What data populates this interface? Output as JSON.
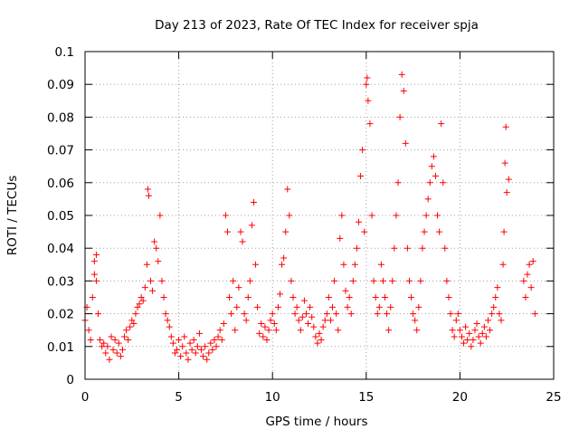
{
  "chart_data": {
    "type": "scatter",
    "title": "Day 213 of 2023, Rate Of TEC Index for receiver spja",
    "xlabel": "GPS time / hours",
    "ylabel": "ROTI / TECUs",
    "xlim": [
      0,
      25
    ],
    "ylim": [
      0,
      0.1
    ],
    "xticks": [
      0,
      5,
      10,
      15,
      20,
      25
    ],
    "xtick_labels": [
      "0",
      "5",
      "10",
      "15",
      "20",
      "25"
    ],
    "yticks": [
      0,
      0.01,
      0.02,
      0.03,
      0.04,
      0.05,
      0.06,
      0.07,
      0.08,
      0.09,
      0.1
    ],
    "ytick_labels": [
      "0",
      "0.01",
      "0.02",
      "0.03",
      "0.04",
      "0.05",
      "0.06",
      "0.07",
      "0.08",
      "0.09",
      "0.1"
    ],
    "grid": true,
    "legend": "none",
    "marker": "plus",
    "color": "#ff0000",
    "series": [
      {
        "values": [
          [
            0.0,
            0.018
          ],
          [
            0.1,
            0.022
          ],
          [
            0.2,
            0.015
          ],
          [
            0.3,
            0.012
          ],
          [
            0.4,
            0.025
          ],
          [
            0.5,
            0.032
          ],
          [
            0.5,
            0.036
          ],
          [
            0.6,
            0.038
          ],
          [
            0.6,
            0.03
          ],
          [
            0.7,
            0.02
          ],
          [
            0.8,
            0.012
          ],
          [
            0.9,
            0.01
          ],
          [
            1.0,
            0.011
          ],
          [
            1.1,
            0.008
          ],
          [
            1.2,
            0.01
          ],
          [
            1.3,
            0.006
          ],
          [
            1.4,
            0.013
          ],
          [
            1.5,
            0.009
          ],
          [
            1.6,
            0.012
          ],
          [
            1.7,
            0.008
          ],
          [
            1.8,
            0.011
          ],
          [
            1.9,
            0.007
          ],
          [
            2.0,
            0.009
          ],
          [
            2.1,
            0.013
          ],
          [
            2.2,
            0.015
          ],
          [
            2.3,
            0.012
          ],
          [
            2.4,
            0.016
          ],
          [
            2.5,
            0.018
          ],
          [
            2.6,
            0.017
          ],
          [
            2.7,
            0.02
          ],
          [
            2.8,
            0.022
          ],
          [
            2.9,
            0.023
          ],
          [
            3.0,
            0.025
          ],
          [
            3.1,
            0.024
          ],
          [
            3.2,
            0.028
          ],
          [
            3.3,
            0.035
          ],
          [
            3.35,
            0.058
          ],
          [
            3.4,
            0.056
          ],
          [
            3.5,
            0.03
          ],
          [
            3.6,
            0.027
          ],
          [
            3.7,
            0.042
          ],
          [
            3.8,
            0.04
          ],
          [
            3.9,
            0.036
          ],
          [
            4.0,
            0.05
          ],
          [
            4.1,
            0.03
          ],
          [
            4.2,
            0.025
          ],
          [
            4.3,
            0.02
          ],
          [
            4.4,
            0.018
          ],
          [
            4.5,
            0.016
          ],
          [
            4.6,
            0.013
          ],
          [
            4.7,
            0.011
          ],
          [
            4.8,
            0.008
          ],
          [
            4.9,
            0.009
          ],
          [
            5.0,
            0.012
          ],
          [
            5.1,
            0.007
          ],
          [
            5.2,
            0.01
          ],
          [
            5.3,
            0.013
          ],
          [
            5.4,
            0.008
          ],
          [
            5.5,
            0.006
          ],
          [
            5.6,
            0.011
          ],
          [
            5.7,
            0.009
          ],
          [
            5.8,
            0.012
          ],
          [
            5.9,
            0.008
          ],
          [
            6.0,
            0.01
          ],
          [
            6.1,
            0.014
          ],
          [
            6.2,
            0.009
          ],
          [
            6.3,
            0.007
          ],
          [
            6.4,
            0.01
          ],
          [
            6.5,
            0.006
          ],
          [
            6.6,
            0.008
          ],
          [
            6.7,
            0.011
          ],
          [
            6.8,
            0.009
          ],
          [
            6.9,
            0.012
          ],
          [
            7.0,
            0.01
          ],
          [
            7.1,
            0.013
          ],
          [
            7.2,
            0.015
          ],
          [
            7.3,
            0.012
          ],
          [
            7.4,
            0.017
          ],
          [
            7.5,
            0.05
          ],
          [
            7.6,
            0.045
          ],
          [
            7.7,
            0.025
          ],
          [
            7.8,
            0.02
          ],
          [
            7.9,
            0.03
          ],
          [
            8.0,
            0.015
          ],
          [
            8.1,
            0.022
          ],
          [
            8.2,
            0.028
          ],
          [
            8.3,
            0.045
          ],
          [
            8.4,
            0.042
          ],
          [
            8.5,
            0.02
          ],
          [
            8.6,
            0.018
          ],
          [
            8.7,
            0.025
          ],
          [
            8.8,
            0.03
          ],
          [
            8.9,
            0.047
          ],
          [
            9.0,
            0.054
          ],
          [
            9.1,
            0.035
          ],
          [
            9.2,
            0.022
          ],
          [
            9.3,
            0.014
          ],
          [
            9.4,
            0.017
          ],
          [
            9.5,
            0.013
          ],
          [
            9.6,
            0.016
          ],
          [
            9.7,
            0.012
          ],
          [
            9.8,
            0.015
          ],
          [
            9.9,
            0.018
          ],
          [
            10.0,
            0.02
          ],
          [
            10.1,
            0.017
          ],
          [
            10.2,
            0.015
          ],
          [
            10.3,
            0.022
          ],
          [
            10.4,
            0.026
          ],
          [
            10.5,
            0.035
          ],
          [
            10.6,
            0.037
          ],
          [
            10.7,
            0.045
          ],
          [
            10.8,
            0.058
          ],
          [
            10.9,
            0.05
          ],
          [
            11.0,
            0.03
          ],
          [
            11.1,
            0.025
          ],
          [
            11.2,
            0.02
          ],
          [
            11.3,
            0.022
          ],
          [
            11.4,
            0.018
          ],
          [
            11.5,
            0.015
          ],
          [
            11.6,
            0.019
          ],
          [
            11.7,
            0.024
          ],
          [
            11.8,
            0.02
          ],
          [
            11.9,
            0.017
          ],
          [
            12.0,
            0.022
          ],
          [
            12.1,
            0.019
          ],
          [
            12.2,
            0.016
          ],
          [
            12.3,
            0.013
          ],
          [
            12.4,
            0.011
          ],
          [
            12.5,
            0.014
          ],
          [
            12.6,
            0.012
          ],
          [
            12.7,
            0.016
          ],
          [
            12.8,
            0.018
          ],
          [
            12.9,
            0.02
          ],
          [
            13.0,
            0.025
          ],
          [
            13.1,
            0.018
          ],
          [
            13.2,
            0.022
          ],
          [
            13.3,
            0.03
          ],
          [
            13.4,
            0.02
          ],
          [
            13.5,
            0.015
          ],
          [
            13.6,
            0.043
          ],
          [
            13.7,
            0.05
          ],
          [
            13.8,
            0.035
          ],
          [
            13.9,
            0.027
          ],
          [
            14.0,
            0.022
          ],
          [
            14.1,
            0.025
          ],
          [
            14.2,
            0.02
          ],
          [
            14.3,
            0.03
          ],
          [
            14.4,
            0.035
          ],
          [
            14.5,
            0.04
          ],
          [
            14.6,
            0.048
          ],
          [
            14.7,
            0.062
          ],
          [
            14.8,
            0.07
          ],
          [
            14.9,
            0.045
          ],
          [
            15.0,
            0.09
          ],
          [
            15.05,
            0.092
          ],
          [
            15.1,
            0.085
          ],
          [
            15.2,
            0.078
          ],
          [
            15.3,
            0.05
          ],
          [
            15.4,
            0.03
          ],
          [
            15.5,
            0.025
          ],
          [
            15.6,
            0.02
          ],
          [
            15.7,
            0.022
          ],
          [
            15.8,
            0.035
          ],
          [
            15.9,
            0.03
          ],
          [
            16.0,
            0.025
          ],
          [
            16.1,
            0.02
          ],
          [
            16.2,
            0.015
          ],
          [
            16.3,
            0.022
          ],
          [
            16.4,
            0.03
          ],
          [
            16.5,
            0.04
          ],
          [
            16.6,
            0.05
          ],
          [
            16.7,
            0.06
          ],
          [
            16.8,
            0.08
          ],
          [
            16.9,
            0.093
          ],
          [
            17.0,
            0.088
          ],
          [
            17.1,
            0.072
          ],
          [
            17.2,
            0.04
          ],
          [
            17.3,
            0.03
          ],
          [
            17.4,
            0.025
          ],
          [
            17.5,
            0.02
          ],
          [
            17.6,
            0.018
          ],
          [
            17.7,
            0.015
          ],
          [
            17.8,
            0.022
          ],
          [
            17.9,
            0.03
          ],
          [
            18.0,
            0.04
          ],
          [
            18.1,
            0.045
          ],
          [
            18.2,
            0.05
          ],
          [
            18.3,
            0.055
          ],
          [
            18.4,
            0.06
          ],
          [
            18.5,
            0.065
          ],
          [
            18.6,
            0.068
          ],
          [
            18.7,
            0.062
          ],
          [
            18.8,
            0.05
          ],
          [
            18.9,
            0.045
          ],
          [
            19.0,
            0.078
          ],
          [
            19.1,
            0.06
          ],
          [
            19.2,
            0.04
          ],
          [
            19.3,
            0.03
          ],
          [
            19.4,
            0.025
          ],
          [
            19.5,
            0.02
          ],
          [
            19.6,
            0.015
          ],
          [
            19.7,
            0.013
          ],
          [
            19.8,
            0.018
          ],
          [
            19.9,
            0.02
          ],
          [
            20.0,
            0.015
          ],
          [
            20.1,
            0.013
          ],
          [
            20.2,
            0.011
          ],
          [
            20.3,
            0.016
          ],
          [
            20.4,
            0.012
          ],
          [
            20.5,
            0.014
          ],
          [
            20.6,
            0.01
          ],
          [
            20.7,
            0.012
          ],
          [
            20.8,
            0.015
          ],
          [
            20.9,
            0.017
          ],
          [
            21.0,
            0.013
          ],
          [
            21.1,
            0.011
          ],
          [
            21.2,
            0.014
          ],
          [
            21.3,
            0.016
          ],
          [
            21.4,
            0.013
          ],
          [
            21.5,
            0.018
          ],
          [
            21.6,
            0.015
          ],
          [
            21.7,
            0.02
          ],
          [
            21.8,
            0.022
          ],
          [
            21.9,
            0.025
          ],
          [
            22.0,
            0.028
          ],
          [
            22.1,
            0.02
          ],
          [
            22.2,
            0.018
          ],
          [
            22.3,
            0.035
          ],
          [
            22.35,
            0.045
          ],
          [
            22.4,
            0.066
          ],
          [
            22.45,
            0.077
          ],
          [
            22.5,
            0.057
          ],
          [
            22.6,
            0.061
          ],
          [
            23.4,
            0.03
          ],
          [
            23.5,
            0.025
          ],
          [
            23.6,
            0.032
          ],
          [
            23.7,
            0.035
          ],
          [
            23.8,
            0.028
          ],
          [
            23.9,
            0.036
          ],
          [
            24.0,
            0.02
          ]
        ]
      }
    ]
  }
}
